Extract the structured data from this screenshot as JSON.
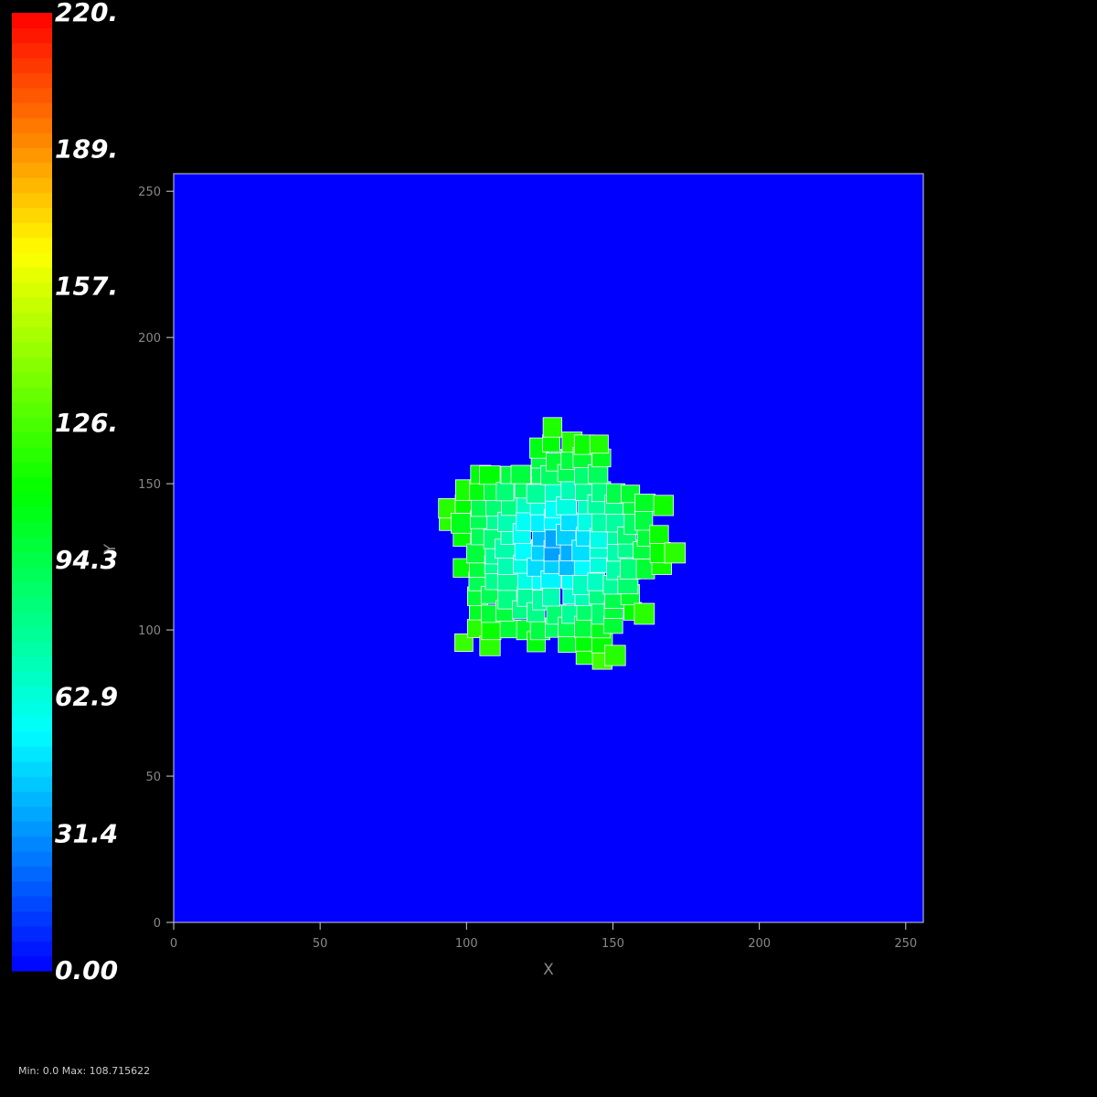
{
  "chart_data": {
    "type": "heatmap",
    "xlabel": "X",
    "ylabel": "Y",
    "xlim": [
      0,
      256
    ],
    "ylim": [
      0,
      256
    ],
    "x_ticks": [
      "0",
      "50",
      "100",
      "150",
      "200",
      "250"
    ],
    "y_ticks": [
      "0",
      "50",
      "100",
      "150",
      "200",
      "250"
    ],
    "background_value": 0,
    "colorbar": {
      "min": 0,
      "max": 220,
      "labels": [
        "220.",
        "189.",
        "157.",
        "126.",
        "94.3",
        "62.9",
        "31.4",
        "0.00"
      ],
      "colormap": "blue-cyan-green-yellow-red (rainbow)",
      "colors": [
        "#0000ff",
        "#00ffff",
        "#00ff00",
        "#ffff00",
        "#ff0000"
      ]
    },
    "cluster": {
      "description": "cell cluster centered near the grid midpoint, values increasing from ~30 at center to ~120 at the rim",
      "center": [
        131,
        128
      ],
      "outer_radius_approx": 42,
      "center_value": 30,
      "rim_value": 120
    },
    "value_range_text": "Min: 0.0 Max: 108.715622"
  }
}
